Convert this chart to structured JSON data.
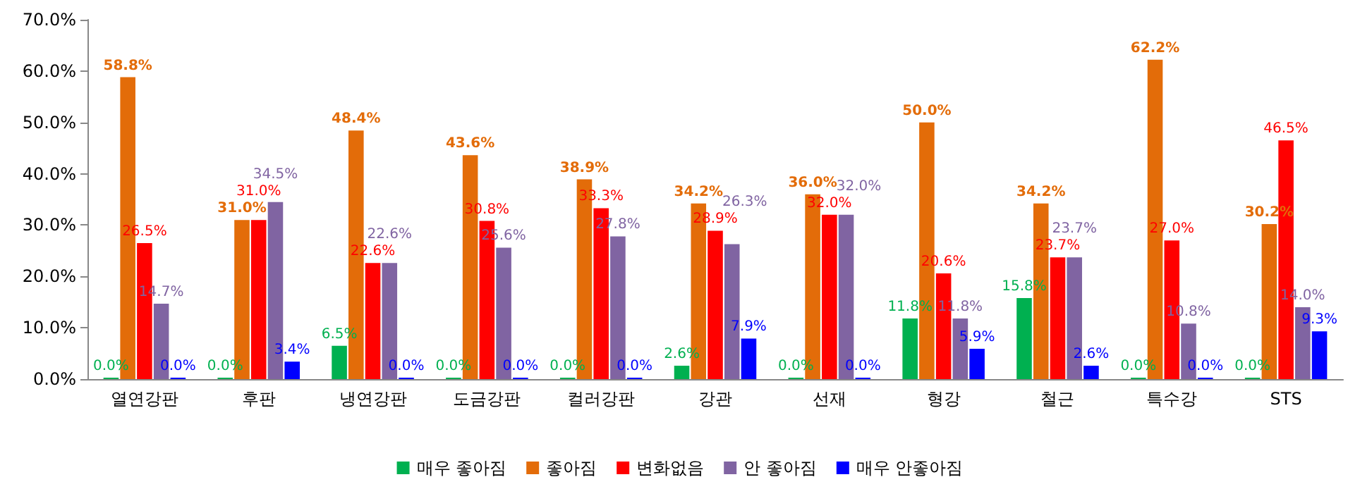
{
  "chart_data": {
    "type": "bar",
    "categories": [
      "열연강판",
      "후판",
      "냉연강판",
      "도금강판",
      "컬러강판",
      "강관",
      "선재",
      "형강",
      "철근",
      "특수강",
      "STS"
    ],
    "series": [
      {
        "name": "매우 좋아짐",
        "color": "#00b050",
        "values": [
          0.0,
          0.0,
          6.5,
          0.0,
          0.0,
          2.6,
          0.0,
          11.8,
          15.8,
          0.0,
          0.0
        ],
        "value_labels": [
          "0.0%",
          "0.0%",
          "6.5%",
          "0.0%",
          "0.0%",
          "2.6%",
          "0.0%",
          "11.8%",
          "15.8%",
          "0.0%",
          "0.0%"
        ]
      },
      {
        "name": "좋아짐",
        "color": "#e36c09",
        "values": [
          58.8,
          31.0,
          48.4,
          43.6,
          38.9,
          34.2,
          36.0,
          50.0,
          34.2,
          62.2,
          30.2
        ],
        "value_labels": [
          "58.8%",
          "31.0%",
          "48.4%",
          "43.6%",
          "38.9%",
          "34.2%",
          "36.0%",
          "50.0%",
          "34.2%",
          "62.2%",
          "30.2%"
        ]
      },
      {
        "name": "변화없음",
        "color": "#ff0000",
        "values": [
          26.5,
          31.0,
          22.6,
          30.8,
          33.3,
          28.9,
          32.0,
          20.6,
          23.7,
          27.0,
          46.5
        ],
        "value_labels": [
          "26.5%",
          "31.0%",
          "22.6%",
          "30.8%",
          "33.3%",
          "28.9%",
          "32.0%",
          "20.6%",
          "23.7%",
          "27.0%",
          "46.5%"
        ]
      },
      {
        "name": "안 좋아짐",
        "color": "#8064a2",
        "values": [
          14.7,
          34.5,
          22.6,
          25.6,
          27.8,
          26.3,
          32.0,
          11.8,
          23.7,
          10.8,
          14.0
        ],
        "value_labels": [
          "14.7%",
          "34.5%",
          "22.6%",
          "25.6%",
          "27.8%",
          "26.3%",
          "32.0%",
          "11.8%",
          "23.7%",
          "10.8%",
          "14.0%"
        ]
      },
      {
        "name": "매우 안좋아짐",
        "color": "#0000ff",
        "values": [
          0.0,
          3.4,
          0.0,
          0.0,
          0.0,
          7.9,
          0.0,
          5.9,
          2.6,
          0.0,
          9.3
        ],
        "value_labels": [
          "0.0%",
          "3.4%",
          "0.0%",
          "0.0%",
          "0.0%",
          "7.9%",
          "0.0%",
          "5.9%",
          "2.6%",
          "0.0%",
          "9.3%"
        ]
      }
    ],
    "ylim": [
      0,
      70
    ],
    "yticks": [
      {
        "value": 0,
        "label": "0.0%"
      },
      {
        "value": 10,
        "label": "10.0%"
      },
      {
        "value": 20,
        "label": "20.0%"
      },
      {
        "value": 30,
        "label": "30.0%"
      },
      {
        "value": 40,
        "label": "40.0%"
      },
      {
        "value": 50,
        "label": "50.0%"
      },
      {
        "value": 60,
        "label": "60.0%"
      },
      {
        "value": 70,
        "label": "70.0%"
      }
    ],
    "grid": false,
    "legend": "bottom"
  }
}
